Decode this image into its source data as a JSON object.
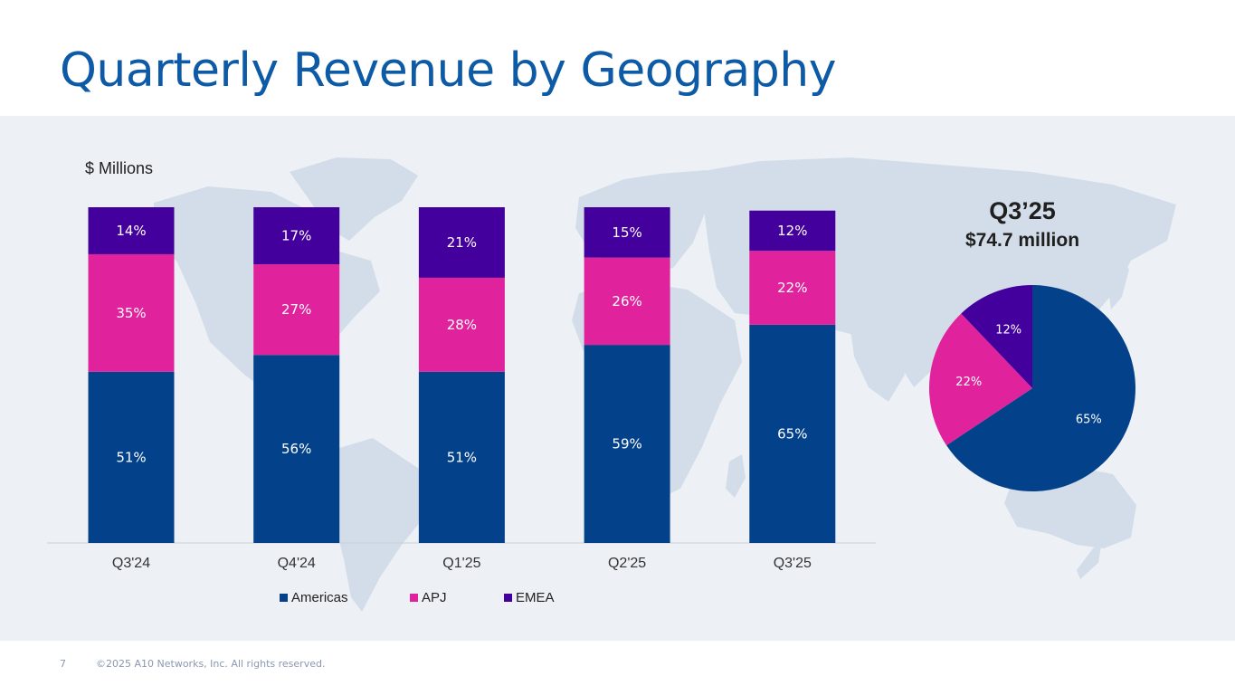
{
  "page": {
    "title": "Quarterly Revenue by Geography",
    "footer": {
      "page_number": "7",
      "copyright": "©2025 A10 Networks, Inc. All rights reserved."
    }
  },
  "colors": {
    "americas": "#03428a",
    "apj": "#e0239c",
    "emea": "#43009c",
    "title": "#0d5aa7",
    "band": "#edf1f6",
    "map": "#d3dde9"
  },
  "chart_data": [
    {
      "type": "bar",
      "stacked": true,
      "units_label": "$ Millions",
      "categories": [
        "Q3'24",
        "Q4'24",
        "Q1'25",
        "Q2'25",
        "Q3'25"
      ],
      "series": [
        {
          "name": "Americas",
          "values": [
            51,
            56,
            51,
            59,
            65
          ],
          "labels": [
            "51%",
            "56%",
            "51%",
            "59%",
            "65%"
          ]
        },
        {
          "name": "APJ",
          "values": [
            35,
            27,
            28,
            26,
            22
          ],
          "labels": [
            "35%",
            "27%",
            "28%",
            "26%",
            "22%"
          ]
        },
        {
          "name": "EMEA",
          "values": [
            14,
            17,
            21,
            15,
            12
          ],
          "labels": [
            "14%",
            "17%",
            "21%",
            "15%",
            "12%"
          ]
        }
      ],
      "legend": [
        "Americas",
        "APJ",
        "EMEA"
      ],
      "legend_position": "bottom",
      "ylim": [
        0,
        100
      ],
      "grid": false
    },
    {
      "type": "pie",
      "title": "Q3’25",
      "subtitle": "$74.7 million",
      "slices": [
        {
          "name": "Americas",
          "value": 65,
          "label": "65%"
        },
        {
          "name": "APJ",
          "value": 22,
          "label": "22%"
        },
        {
          "name": "EMEA",
          "value": 12,
          "label": "12%"
        }
      ]
    }
  ]
}
